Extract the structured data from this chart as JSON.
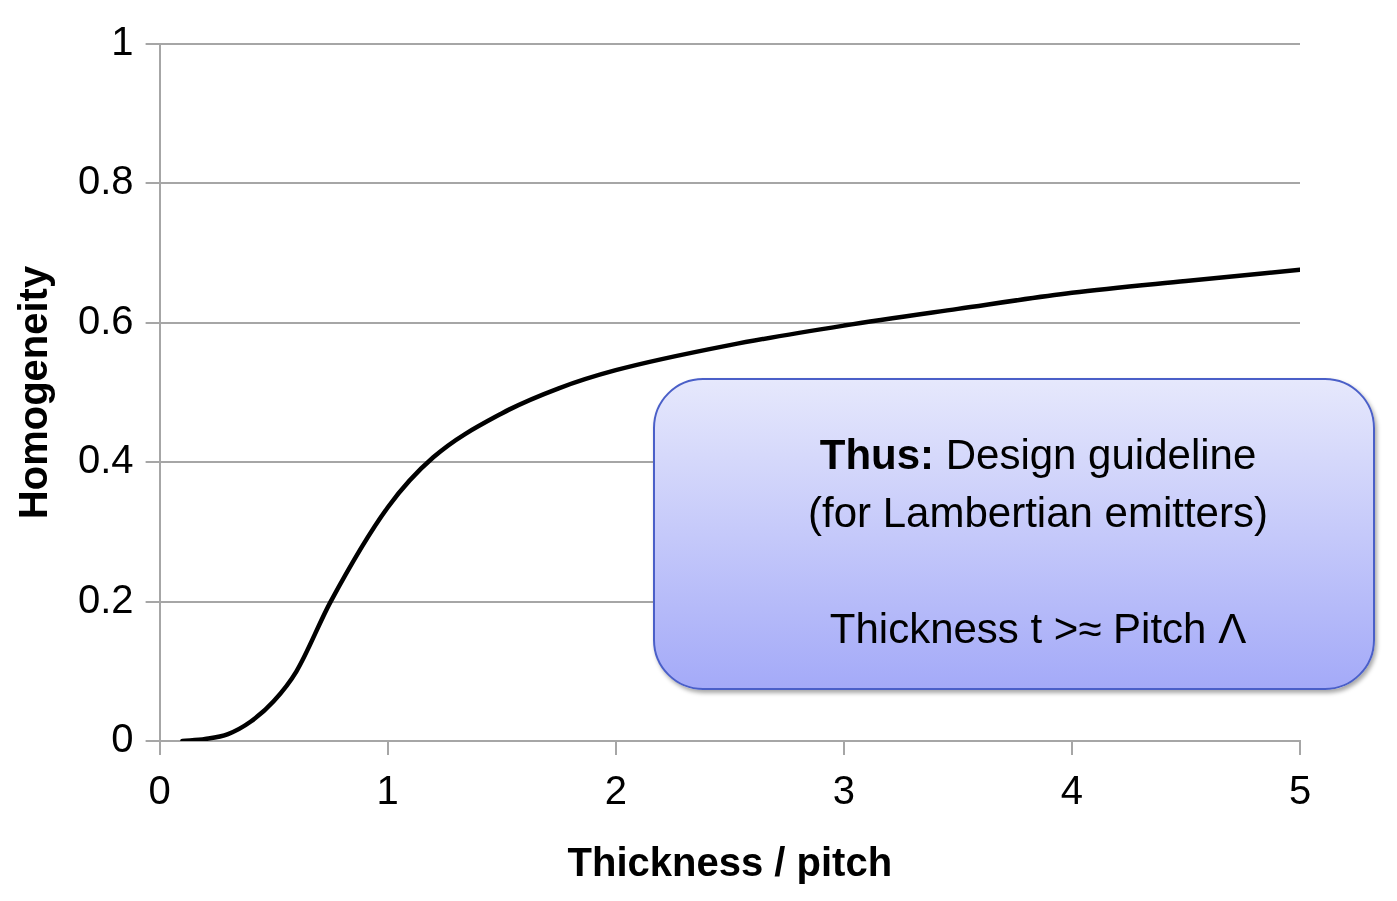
{
  "chart_data": {
    "type": "line",
    "xlabel": "Thickness / pitch",
    "ylabel": "Homogeneity",
    "x": [
      0.1,
      0.2,
      0.3,
      0.4,
      0.5,
      0.6,
      0.75,
      1.0,
      1.2,
      1.5,
      1.75,
      2.0,
      2.5,
      3.0,
      3.5,
      4.0,
      4.5,
      5.0
    ],
    "series": [
      {
        "color": "#000000",
        "values": [
          0,
          0.003,
          0.01,
          0.028,
          0.057,
          0.1,
          0.2,
          0.335,
          0.407,
          0.47,
          0.506,
          0.532,
          0.568,
          0.596,
          0.62,
          0.643,
          0.66,
          0.676
        ]
      }
    ],
    "xlim": [
      0,
      5
    ],
    "xticks": [
      0,
      1,
      2,
      3,
      4,
      5
    ],
    "ylim": [
      0,
      1
    ],
    "yticks": [
      0,
      0.2,
      0.4,
      0.6,
      0.8,
      1
    ],
    "grid": "y",
    "legend": false,
    "marker": "none",
    "line_style": "solid",
    "annotations": [
      "Thus: Design guideline",
      "(for Lambertian emitters)",
      "Thickness t >≈ Pitch Λ"
    ]
  }
}
